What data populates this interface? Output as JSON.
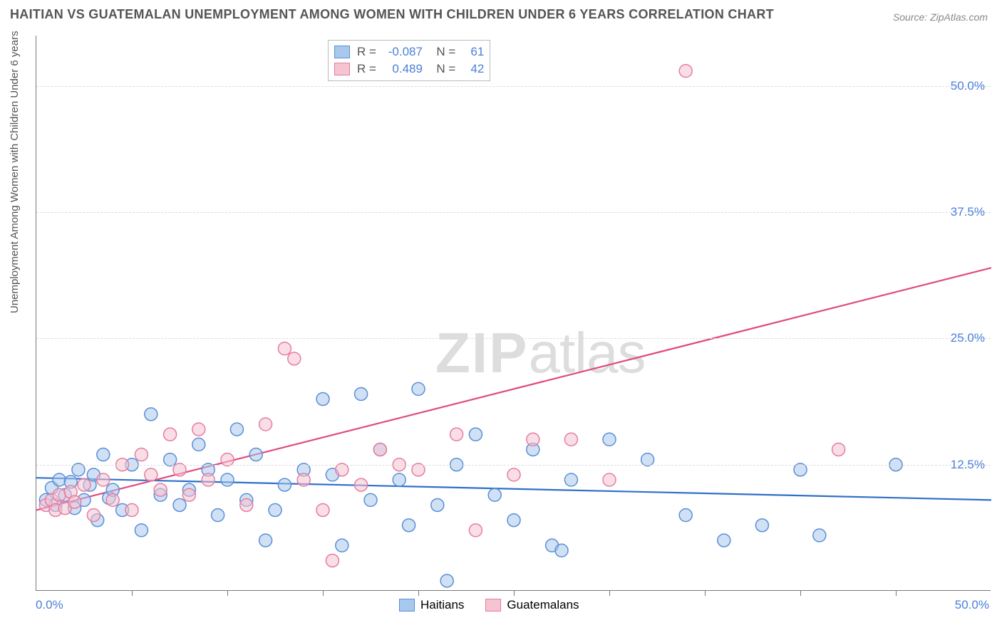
{
  "title": "HAITIAN VS GUATEMALAN UNEMPLOYMENT AMONG WOMEN WITH CHILDREN UNDER 6 YEARS CORRELATION CHART",
  "source": "Source: ZipAtlas.com",
  "ylabel": "Unemployment Among Women with Children Under 6 years",
  "watermark_a": "ZIP",
  "watermark_b": "atlas",
  "chart": {
    "type": "scatter",
    "xlim": [
      0,
      50
    ],
    "ylim": [
      0,
      55
    ],
    "x_min_label": "0.0%",
    "x_max_label": "50.0%",
    "ytick_positions": [
      12.5,
      25.0,
      37.5,
      50.0
    ],
    "ytick_labels": [
      "12.5%",
      "25.0%",
      "37.5%",
      "50.0%"
    ],
    "xtick_positions": [
      5,
      10,
      15,
      20,
      25,
      30,
      35,
      40,
      45
    ],
    "grid_color": "#dddddd",
    "axis_color": "#777777",
    "background": "#ffffff",
    "marker_radius": 9,
    "marker_stroke_width": 1.5,
    "line_width": 2.2,
    "series": [
      {
        "name": "Haitians",
        "fill": "#a9c8ed",
        "stroke": "#5a8fd6",
        "line_color": "#2f6fc9",
        "R": "-0.087",
        "N": "61",
        "regression": {
          "x1": 0,
          "y1": 11.2,
          "x2": 50,
          "y2": 9.0
        },
        "points": [
          [
            0.5,
            9.0
          ],
          [
            0.8,
            10.2
          ],
          [
            1.0,
            8.5
          ],
          [
            1.2,
            11.0
          ],
          [
            1.5,
            9.5
          ],
          [
            1.8,
            10.8
          ],
          [
            2.0,
            8.2
          ],
          [
            2.2,
            12.0
          ],
          [
            2.5,
            9.0
          ],
          [
            2.8,
            10.5
          ],
          [
            3.0,
            11.5
          ],
          [
            3.2,
            7.0
          ],
          [
            3.5,
            13.5
          ],
          [
            3.8,
            9.2
          ],
          [
            4.0,
            10.0
          ],
          [
            4.5,
            8.0
          ],
          [
            5.0,
            12.5
          ],
          [
            5.5,
            6.0
          ],
          [
            6.0,
            17.5
          ],
          [
            6.5,
            9.5
          ],
          [
            7.0,
            13.0
          ],
          [
            7.5,
            8.5
          ],
          [
            8.0,
            10.0
          ],
          [
            8.5,
            14.5
          ],
          [
            9.0,
            12.0
          ],
          [
            9.5,
            7.5
          ],
          [
            10.0,
            11.0
          ],
          [
            10.5,
            16.0
          ],
          [
            11.0,
            9.0
          ],
          [
            11.5,
            13.5
          ],
          [
            12.0,
            5.0
          ],
          [
            12.5,
            8.0
          ],
          [
            13.0,
            10.5
          ],
          [
            14.0,
            12.0
          ],
          [
            15.0,
            19.0
          ],
          [
            15.5,
            11.5
          ],
          [
            16.0,
            4.5
          ],
          [
            17.0,
            19.5
          ],
          [
            17.5,
            9.0
          ],
          [
            18.0,
            14.0
          ],
          [
            19.0,
            11.0
          ],
          [
            19.5,
            6.5
          ],
          [
            20.0,
            20.0
          ],
          [
            21.0,
            8.5
          ],
          [
            21.5,
            1.0
          ],
          [
            22.0,
            12.5
          ],
          [
            23.0,
            15.5
          ],
          [
            24.0,
            9.5
          ],
          [
            25.0,
            7.0
          ],
          [
            26.0,
            14.0
          ],
          [
            27.0,
            4.5
          ],
          [
            27.5,
            4.0
          ],
          [
            28.0,
            11.0
          ],
          [
            30.0,
            15.0
          ],
          [
            32.0,
            13.0
          ],
          [
            34.0,
            7.5
          ],
          [
            36.0,
            5.0
          ],
          [
            38.0,
            6.5
          ],
          [
            40.0,
            12.0
          ],
          [
            41.0,
            5.5
          ],
          [
            45.0,
            12.5
          ]
        ]
      },
      {
        "name": "Guatemalans",
        "fill": "#f6c3d1",
        "stroke": "#e67da0",
        "line_color": "#e04b7e",
        "R": "0.489",
        "N": "42",
        "regression": {
          "x1": 0,
          "y1": 8.0,
          "x2": 50,
          "y2": 32.0
        },
        "points": [
          [
            0.5,
            8.5
          ],
          [
            0.8,
            9.0
          ],
          [
            1.0,
            8.0
          ],
          [
            1.2,
            9.5
          ],
          [
            1.5,
            8.2
          ],
          [
            1.8,
            9.8
          ],
          [
            2.0,
            8.8
          ],
          [
            2.5,
            10.5
          ],
          [
            3.0,
            7.5
          ],
          [
            3.5,
            11.0
          ],
          [
            4.0,
            9.0
          ],
          [
            4.5,
            12.5
          ],
          [
            5.0,
            8.0
          ],
          [
            5.5,
            13.5
          ],
          [
            6.0,
            11.5
          ],
          [
            6.5,
            10.0
          ],
          [
            7.0,
            15.5
          ],
          [
            7.5,
            12.0
          ],
          [
            8.0,
            9.5
          ],
          [
            8.5,
            16.0
          ],
          [
            9.0,
            11.0
          ],
          [
            10.0,
            13.0
          ],
          [
            11.0,
            8.5
          ],
          [
            12.0,
            16.5
          ],
          [
            13.0,
            24.0
          ],
          [
            13.5,
            23.0
          ],
          [
            14.0,
            11.0
          ],
          [
            15.0,
            8.0
          ],
          [
            16.0,
            12.0
          ],
          [
            17.0,
            10.5
          ],
          [
            18.0,
            14.0
          ],
          [
            20.0,
            12.0
          ],
          [
            22.0,
            15.5
          ],
          [
            23.0,
            6.0
          ],
          [
            25.0,
            11.5
          ],
          [
            26.0,
            15.0
          ],
          [
            28.0,
            15.0
          ],
          [
            30.0,
            11.0
          ],
          [
            34.0,
            51.5
          ],
          [
            42.0,
            14.0
          ],
          [
            15.5,
            3.0
          ],
          [
            19.0,
            12.5
          ]
        ]
      }
    ]
  },
  "legend_bottom": [
    {
      "label": "Haitians",
      "fill": "#a9c8ed",
      "stroke": "#5a8fd6"
    },
    {
      "label": "Guatemalans",
      "fill": "#f6c3d1",
      "stroke": "#e67da0"
    }
  ]
}
